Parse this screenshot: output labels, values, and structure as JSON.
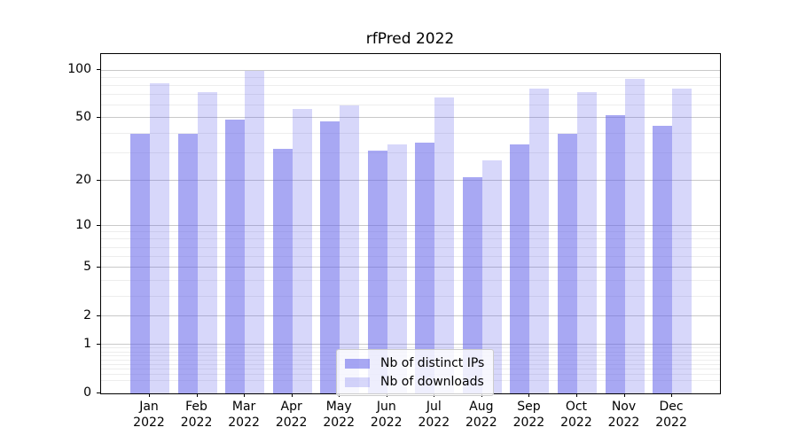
{
  "chart_data": {
    "type": "bar",
    "title": "rfPred 2022",
    "categories": [
      "Jan 2022",
      "Feb 2022",
      "Mar 2022",
      "Apr 2022",
      "May 2022",
      "Jun 2022",
      "Jul 2022",
      "Aug 2022",
      "Sep 2022",
      "Oct 2022",
      "Nov 2022",
      "Dec 2022"
    ],
    "series": [
      {
        "name": "Nb of distinct IPs",
        "color": "rgba(97,97,234,0.55)",
        "values": [
          40,
          40,
          49,
          32,
          48,
          31,
          35,
          21,
          34,
          40,
          52,
          45
        ]
      },
      {
        "name": "Nb of downloads",
        "color": "rgba(97,97,234,0.25)",
        "values": [
          83,
          73,
          100,
          57,
          60,
          34,
          68,
          27,
          77,
          73,
          88,
          77
        ]
      }
    ],
    "yscale": "log1p",
    "yticks": [
      100,
      50,
      20,
      10,
      5,
      2,
      1,
      0
    ],
    "minor_yticks": [
      0.2,
      0.3,
      0.4,
      0.5,
      0.6,
      0.7,
      0.8,
      0.9,
      3,
      4,
      6,
      7,
      8,
      9,
      30,
      40,
      60,
      70,
      80,
      90
    ],
    "ylim": [
      0,
      127
    ],
    "grid": "both",
    "legend_position": "lower center",
    "colors": {
      "bar_distinct_ips": "#a8a8f0",
      "bar_downloads": "#d8d8f6",
      "major_grid": "#c9c9c9",
      "minor_grid": "#ededed",
      "spine": "#000000",
      "background": "#ffffff"
    }
  }
}
